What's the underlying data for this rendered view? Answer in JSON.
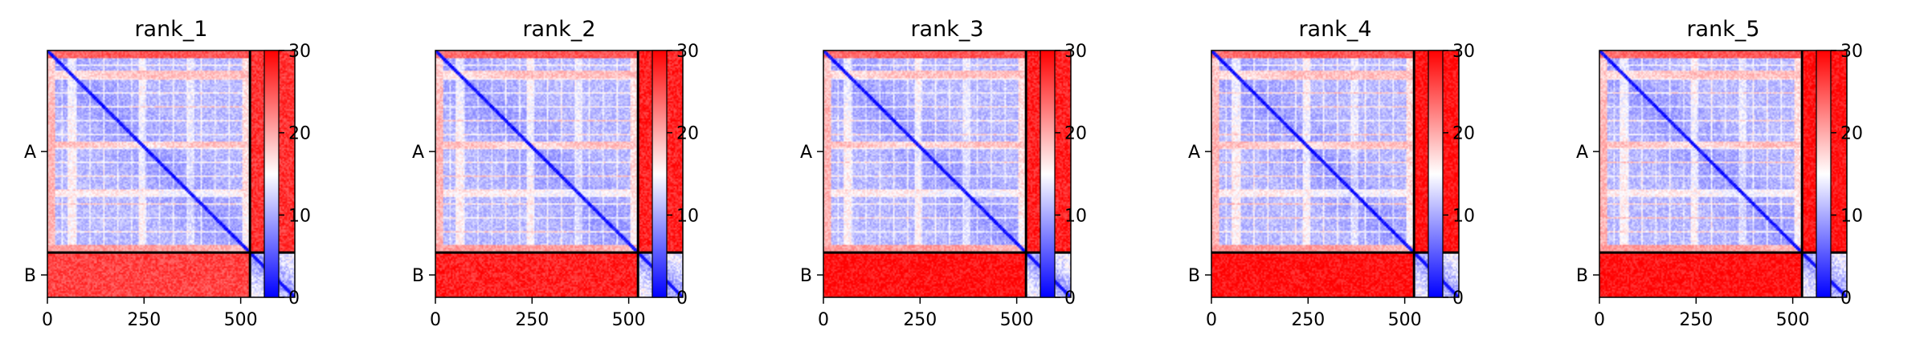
{
  "chart_data": [
    {
      "type": "heatmap",
      "title": "rank_1",
      "x_ticks": [
        0,
        250,
        500
      ],
      "y_tick_labels": [
        "A",
        "B"
      ],
      "chain_lengths": {
        "A": 524,
        "B": 116
      },
      "total_residues": 640,
      "colorbar": {
        "min": 0,
        "max": 30,
        "ticks": [
          0,
          10,
          20,
          30
        ],
        "colormap": [
          "#0000ff",
          "#ffffff",
          "#ff0000"
        ]
      },
      "block_means": {
        "A_A": 12,
        "A_B": 27,
        "B_A": 26,
        "B_B": 9
      }
    },
    {
      "type": "heatmap",
      "title": "rank_2",
      "x_ticks": [
        0,
        250,
        500
      ],
      "y_tick_labels": [
        "A",
        "B"
      ],
      "chain_lengths": {
        "A": 524,
        "B": 116
      },
      "total_residues": 640,
      "colorbar": {
        "min": 0,
        "max": 30,
        "ticks": [
          0,
          10,
          20,
          30
        ],
        "colormap": [
          "#0000ff",
          "#ffffff",
          "#ff0000"
        ]
      },
      "block_means": {
        "A_A": 12,
        "A_B": 28,
        "B_A": 28,
        "B_B": 9
      }
    },
    {
      "type": "heatmap",
      "title": "rank_3",
      "x_ticks": [
        0,
        250,
        500
      ],
      "y_tick_labels": [
        "A",
        "B"
      ],
      "chain_lengths": {
        "A": 524,
        "B": 116
      },
      "total_residues": 640,
      "colorbar": {
        "min": 0,
        "max": 30,
        "ticks": [
          0,
          10,
          20,
          30
        ],
        "colormap": [
          "#0000ff",
          "#ffffff",
          "#ff0000"
        ]
      },
      "block_means": {
        "A_A": 12,
        "A_B": 28,
        "B_A": 29,
        "B_B": 9
      }
    },
    {
      "type": "heatmap",
      "title": "rank_4",
      "x_ticks": [
        0,
        250,
        500
      ],
      "y_tick_labels": [
        "A",
        "B"
      ],
      "chain_lengths": {
        "A": 524,
        "B": 116
      },
      "total_residues": 640,
      "colorbar": {
        "min": 0,
        "max": 30,
        "ticks": [
          0,
          10,
          20,
          30
        ],
        "colormap": [
          "#0000ff",
          "#ffffff",
          "#ff0000"
        ]
      },
      "block_means": {
        "A_A": 12,
        "A_B": 29,
        "B_A": 29,
        "B_B": 9
      }
    },
    {
      "type": "heatmap",
      "title": "rank_5",
      "x_ticks": [
        0,
        250,
        500
      ],
      "y_tick_labels": [
        "A",
        "B"
      ],
      "chain_lengths": {
        "A": 524,
        "B": 116
      },
      "total_residues": 640,
      "colorbar": {
        "min": 0,
        "max": 30,
        "ticks": [
          0,
          10,
          20,
          30
        ],
        "colormap": [
          "#0000ff",
          "#ffffff",
          "#ff0000"
        ]
      },
      "block_means": {
        "A_A": 12,
        "A_B": 29,
        "B_A": 29,
        "B_B": 9
      }
    }
  ]
}
